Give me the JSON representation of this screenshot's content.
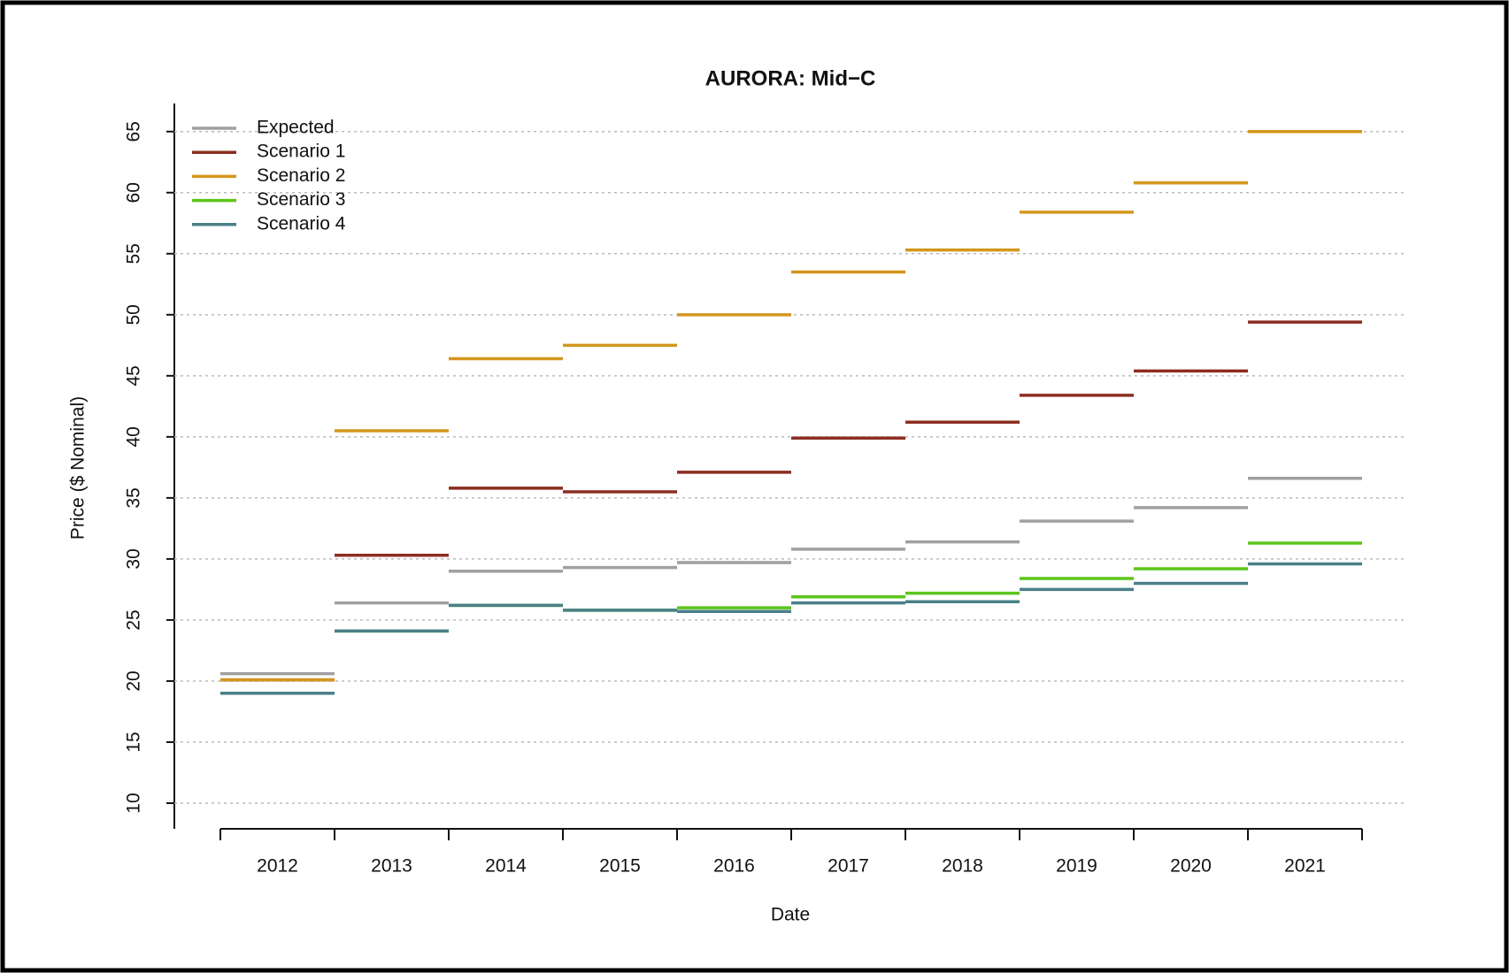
{
  "chart_data": {
    "type": "step",
    "title": "AURORA: Mid−C",
    "x_label": "Date",
    "y_label": "Price ($ Nominal)",
    "categories": [
      "2012",
      "2013",
      "2014",
      "2015",
      "2016",
      "2017",
      "2018",
      "2019",
      "2020",
      "2021"
    ],
    "series": [
      {
        "name": "Expected",
        "color": "#a0a0a0",
        "values": [
          20.6,
          26.4,
          29.0,
          29.3,
          29.7,
          30.8,
          31.4,
          33.1,
          34.2,
          36.6
        ]
      },
      {
        "name": "Scenario 1",
        "color": "#8b2e22",
        "values": [
          20.1,
          30.3,
          35.8,
          35.5,
          37.1,
          39.9,
          41.2,
          43.4,
          45.4,
          49.4
        ]
      },
      {
        "name": "Scenario 2",
        "color": "#d4961e",
        "values": [
          20.1,
          40.5,
          46.4,
          47.5,
          50.0,
          53.5,
          55.3,
          58.4,
          60.8,
          65.0
        ]
      },
      {
        "name": "Scenario 3",
        "color": "#5cc51c",
        "values": [
          19.0,
          24.1,
          26.2,
          25.8,
          26.0,
          26.9,
          27.2,
          28.4,
          29.2,
          31.3
        ]
      },
      {
        "name": "Scenario 4",
        "color": "#4a8088",
        "values": [
          19.0,
          24.1,
          26.2,
          25.8,
          25.7,
          26.4,
          26.5,
          27.5,
          28.0,
          29.6
        ]
      }
    ],
    "ylim": [
      7.9,
      67.3
    ],
    "yticks": [
      10,
      15,
      20,
      25,
      30,
      35,
      40,
      45,
      50,
      55,
      60,
      65
    ],
    "grid": true,
    "legend_position": "top-left"
  }
}
